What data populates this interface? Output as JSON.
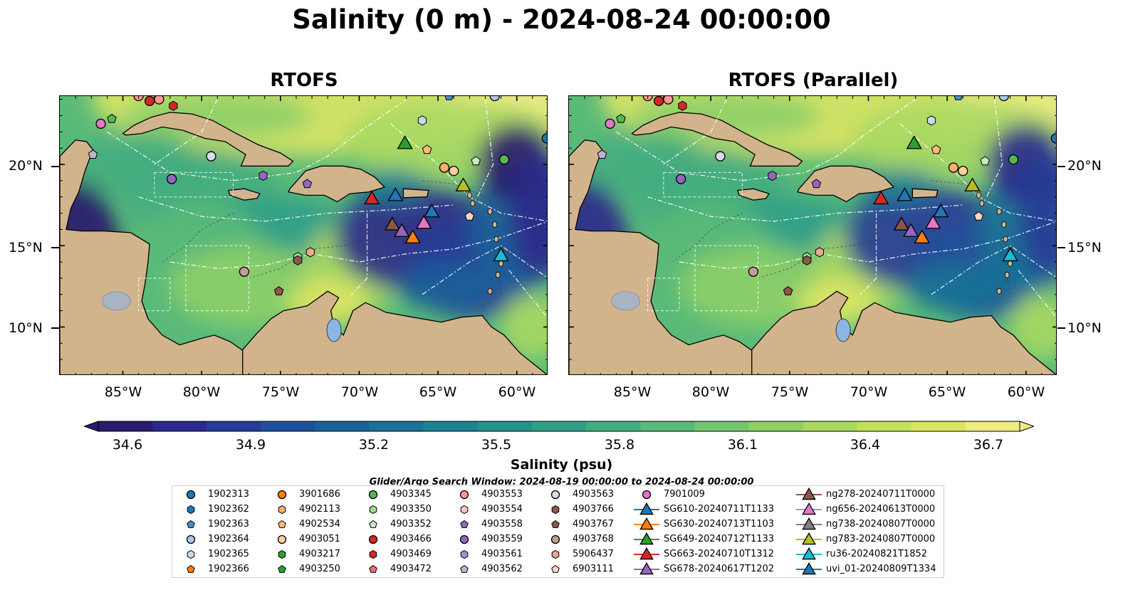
{
  "title": "Salinity (0 m) - 2024-08-24 00:00:00",
  "panels": [
    {
      "title": "RTOFS"
    },
    {
      "title": "RTOFS (Parallel)"
    }
  ],
  "lat_labels": [
    "20°N",
    "15°N",
    "10°N"
  ],
  "lon_labels": [
    "85°W",
    "80°W",
    "75°W",
    "70°W",
    "65°W",
    "60°W"
  ],
  "colorbar": {
    "label": "Salinity (psu)",
    "ticks": [
      "34.6",
      "34.9",
      "35.2",
      "35.5",
      "35.8",
      "36.1",
      "36.4",
      "36.7"
    ],
    "min": 34.6,
    "max": 36.7,
    "colors": [
      "#2a1a6b",
      "#2b2a8a",
      "#273c97",
      "#20509a",
      "#1b6199",
      "#1a7296",
      "#1d8292",
      "#24918d",
      "#319f88",
      "#44ad80",
      "#5aba78",
      "#73c570",
      "#8dcf68",
      "#a8d862",
      "#c3e05f",
      "#dbe564",
      "#eeeb86"
    ],
    "extend": "both"
  },
  "search_window": "Glider/Argo Search Window: 2024-08-19 00:00:00 to 2024-08-24 00:00:00",
  "legend": [
    {
      "label": "1902313",
      "color": "#1f77b4",
      "marker": "circle"
    },
    {
      "label": "1902362",
      "color": "#1f77b4",
      "marker": "hexagon"
    },
    {
      "label": "1902363",
      "color": "#4a8fc9",
      "marker": "pentagon"
    },
    {
      "label": "1902364",
      "color": "#aec7e8",
      "marker": "circle"
    },
    {
      "label": "1902365",
      "color": "#c6dbef",
      "marker": "hexagon"
    },
    {
      "label": "1902366",
      "color": "#ff7f0e",
      "marker": "pentagon"
    },
    {
      "label": "3901686",
      "color": "#ff7f0e",
      "marker": "circle"
    },
    {
      "label": "4902113",
      "color": "#fdae6b",
      "marker": "hexagon"
    },
    {
      "label": "4902534",
      "color": "#ffbb78",
      "marker": "pentagon"
    },
    {
      "label": "4903051",
      "color": "#fdd0a2",
      "marker": "circle"
    },
    {
      "label": "4903217",
      "color": "#2ca02c",
      "marker": "hexagon"
    },
    {
      "label": "4903250",
      "color": "#2ca02c",
      "marker": "pentagon"
    },
    {
      "label": "4903345",
      "color": "#55b755",
      "marker": "circle"
    },
    {
      "label": "4903350",
      "color": "#98df8a",
      "marker": "hexagon"
    },
    {
      "label": "4903352",
      "color": "#c7e9c0",
      "marker": "pentagon"
    },
    {
      "label": "4903466",
      "color": "#d62728",
      "marker": "circle"
    },
    {
      "label": "4903469",
      "color": "#d62728",
      "marker": "hexagon"
    },
    {
      "label": "4903472",
      "color": "#f46d6d",
      "marker": "pentagon"
    },
    {
      "label": "4903553",
      "color": "#ff9896",
      "marker": "circle"
    },
    {
      "label": "4903554",
      "color": "#fcc5c0",
      "marker": "hexagon"
    },
    {
      "label": "4903558",
      "color": "#9467bd",
      "marker": "pentagon"
    },
    {
      "label": "4903559",
      "color": "#9467bd",
      "marker": "circle"
    },
    {
      "label": "4903561",
      "color": "#a98bd4",
      "marker": "hexagon"
    },
    {
      "label": "4903562",
      "color": "#c5b0d5",
      "marker": "pentagon"
    },
    {
      "label": "4903563",
      "color": "#dadaeb",
      "marker": "circle"
    },
    {
      "label": "4903766",
      "color": "#8c564b",
      "marker": "hexagon"
    },
    {
      "label": "4903767",
      "color": "#8c564b",
      "marker": "pentagon"
    },
    {
      "label": "4903768",
      "color": "#c49c94",
      "marker": "circle"
    },
    {
      "label": "5906437",
      "color": "#e7a98f",
      "marker": "hexagon"
    },
    {
      "label": "6903111",
      "color": "#fbd3c5",
      "marker": "pentagon"
    },
    {
      "label": "7901009",
      "color": "#e377c2",
      "marker": "circle"
    },
    {
      "label": "SG610-20240711T1133",
      "color": "#1f77b4",
      "marker": "triangle"
    },
    {
      "label": "SG630-20240713T1103",
      "color": "#ff7f0e",
      "marker": "triangle"
    },
    {
      "label": "SG649-20240712T1133",
      "color": "#2ca02c",
      "marker": "triangle"
    },
    {
      "label": "SG663-20240710T1312",
      "color": "#d62728",
      "marker": "triangle"
    },
    {
      "label": "SG678-20240617T1202",
      "color": "#9467bd",
      "marker": "triangle"
    },
    {
      "label": "ng278-20240711T0000",
      "color": "#8c564b",
      "marker": "triangle"
    },
    {
      "label": "ng656-20240613T0000",
      "color": "#e377c2",
      "marker": "triangle"
    },
    {
      "label": "ng738-20240807T0000",
      "color": "#7f7f7f",
      "marker": "triangle"
    },
    {
      "label": "ng783-20240807T0000",
      "color": "#bcbd22",
      "marker": "triangle"
    },
    {
      "label": "ru36-20240821T1852",
      "color": "#17becf",
      "marker": "triangle"
    },
    {
      "label": "uvi_01-20240809T1334",
      "color": "#1f77b4",
      "marker": "triangle"
    }
  ],
  "map_extent": {
    "lon": [
      -89,
      -58
    ],
    "lat": [
      7,
      24.2
    ]
  },
  "markers": [
    {
      "lon": -84.0,
      "lat": 24.2,
      "color": "#ff9896",
      "marker": "circle"
    },
    {
      "lon": -83.3,
      "lat": 23.9,
      "color": "#d62728",
      "marker": "circle"
    },
    {
      "lon": -82.7,
      "lat": 24.0,
      "color": "#ff9896",
      "marker": "circle"
    },
    {
      "lon": -81.8,
      "lat": 23.6,
      "color": "#d62728",
      "marker": "hexagon"
    },
    {
      "lon": -86.4,
      "lat": 22.5,
      "color": "#e377c2",
      "marker": "circle"
    },
    {
      "lon": -85.7,
      "lat": 22.8,
      "color": "#55b755",
      "marker": "pentagon"
    },
    {
      "lon": -86.9,
      "lat": 20.6,
      "color": "#c5b0d5",
      "marker": "pentagon"
    },
    {
      "lon": -79.4,
      "lat": 20.5,
      "color": "#dadaeb",
      "marker": "circle"
    },
    {
      "lon": -81.9,
      "lat": 19.1,
      "color": "#9467bd",
      "marker": "circle"
    },
    {
      "lon": -76.1,
      "lat": 19.3,
      "color": "#9467bd",
      "marker": "hexagon"
    },
    {
      "lon": -73.3,
      "lat": 18.8,
      "color": "#9467bd",
      "marker": "pentagon"
    },
    {
      "lon": -66.0,
      "lat": 22.7,
      "color": "#c6dbef",
      "marker": "hexagon"
    },
    {
      "lon": -64.3,
      "lat": 24.2,
      "color": "#4a8fc9",
      "marker": "pentagon"
    },
    {
      "lon": -61.4,
      "lat": 24.2,
      "color": "#aec7e8",
      "marker": "circle"
    },
    {
      "lon": -58.1,
      "lat": 21.6,
      "color": "#1f77b4",
      "marker": "circle"
    },
    {
      "lon": -67.1,
      "lat": 21.3,
      "color": "#2ca02c",
      "marker": "triangle"
    },
    {
      "lon": -65.7,
      "lat": 20.9,
      "color": "#ffbb78",
      "marker": "pentagon"
    },
    {
      "lon": -64.6,
      "lat": 19.8,
      "color": "#fdae6b",
      "marker": "circle"
    },
    {
      "lon": -64.0,
      "lat": 19.6,
      "color": "#fdd0a2",
      "marker": "circle"
    },
    {
      "lon": -62.6,
      "lat": 20.2,
      "color": "#c7e9c0",
      "marker": "pentagon"
    },
    {
      "lon": -60.8,
      "lat": 20.3,
      "color": "#55b755",
      "marker": "circle"
    },
    {
      "lon": -63.4,
      "lat": 18.7,
      "color": "#bcbd22",
      "marker": "triangle"
    },
    {
      "lon": -69.2,
      "lat": 17.9,
      "color": "#d62728",
      "marker": "triangle"
    },
    {
      "lon": -67.7,
      "lat": 18.1,
      "color": "#1f77b4",
      "marker": "triangle"
    },
    {
      "lon": -65.4,
      "lat": 17.1,
      "color": "#1f77b4",
      "marker": "triangle"
    },
    {
      "lon": -67.9,
      "lat": 16.3,
      "color": "#8c564b",
      "marker": "triangle"
    },
    {
      "lon": -67.3,
      "lat": 15.9,
      "color": "#9467bd",
      "marker": "triangle"
    },
    {
      "lon": -66.6,
      "lat": 15.5,
      "color": "#ff7f0e",
      "marker": "triangle"
    },
    {
      "lon": -65.9,
      "lat": 16.4,
      "color": "#e377c2",
      "marker": "triangle"
    },
    {
      "lon": -63.0,
      "lat": 16.8,
      "color": "#fbd3c5",
      "marker": "pentagon"
    },
    {
      "lon": -61.0,
      "lat": 14.4,
      "color": "#17becf",
      "marker": "triangle"
    },
    {
      "lon": -73.9,
      "lat": 14.3,
      "color": "#98df8a",
      "marker": "hexagon"
    },
    {
      "lon": -73.9,
      "lat": 14.1,
      "color": "#8c564b",
      "marker": "hexagon"
    },
    {
      "lon": -73.1,
      "lat": 14.6,
      "color": "#e7a98f",
      "marker": "hexagon"
    },
    {
      "lon": -77.3,
      "lat": 13.4,
      "color": "#c49c94",
      "marker": "circle"
    },
    {
      "lon": -75.1,
      "lat": 12.2,
      "color": "#8c564b",
      "marker": "pentagon"
    }
  ]
}
